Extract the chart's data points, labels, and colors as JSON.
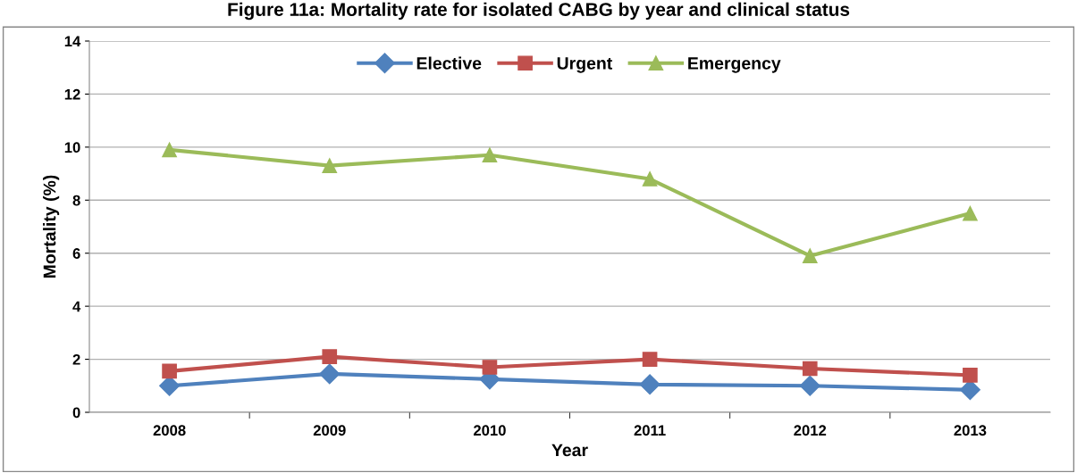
{
  "chart_data": {
    "type": "line",
    "title": "Figure 11a: Mortality rate for isolated CABG by year and clinical status",
    "xlabel": "Year",
    "ylabel": "Mortality (%)",
    "categories": [
      "2008",
      "2009",
      "2010",
      "2011",
      "2012",
      "2013"
    ],
    "series": [
      {
        "name": "Elective",
        "color": "#4f81bd",
        "marker": "diamond",
        "values": [
          1.0,
          1.45,
          1.25,
          1.05,
          1.0,
          0.85
        ]
      },
      {
        "name": "Urgent",
        "color": "#c0504d",
        "marker": "square",
        "values": [
          1.55,
          2.1,
          1.7,
          2.0,
          1.65,
          1.4
        ]
      },
      {
        "name": "Emergency",
        "color": "#9bbb59",
        "marker": "triangle",
        "values": [
          9.9,
          9.3,
          9.7,
          8.8,
          5.9,
          7.5
        ]
      }
    ],
    "ylim": [
      0,
      14
    ],
    "yticks": [
      0,
      2,
      4,
      6,
      8,
      10,
      12,
      14
    ],
    "grid": "y",
    "legend": "top"
  }
}
